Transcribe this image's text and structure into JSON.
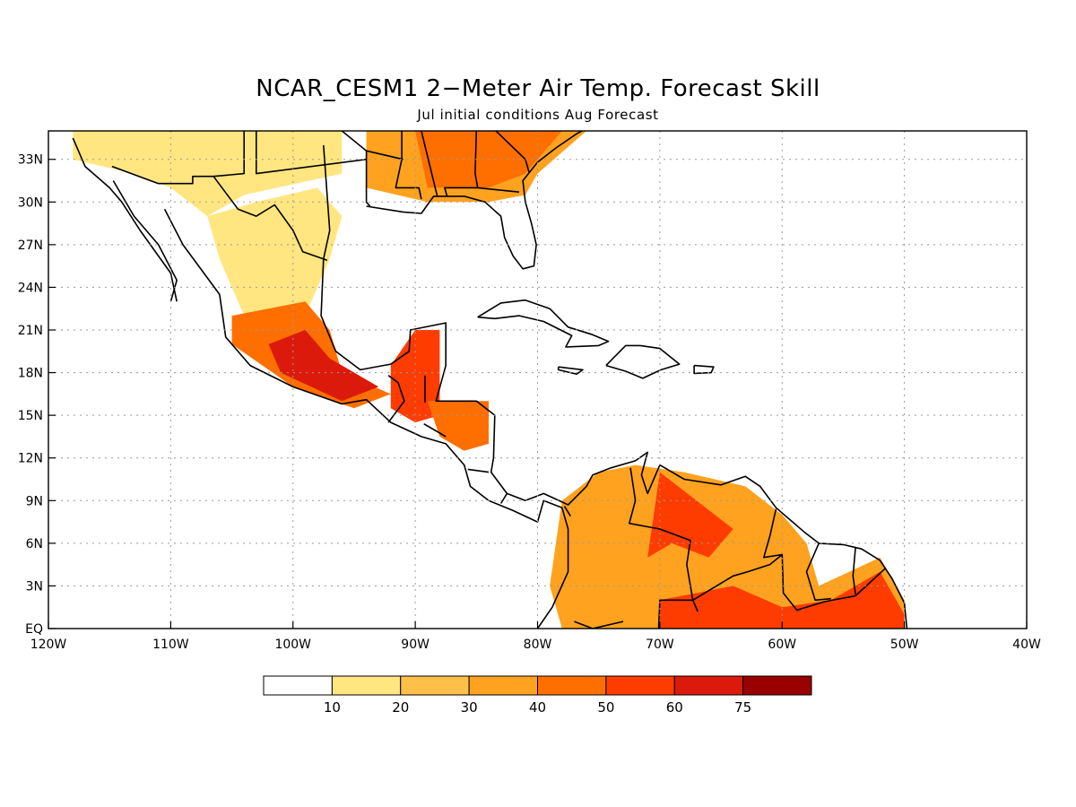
{
  "title": "NCAR_CESM1 2−Meter Air Temp. Forecast Skill",
  "subtitle": "Jul initial conditions  Aug Forecast",
  "map": {
    "lon_range": [
      -120,
      -40
    ],
    "lat_range": [
      0,
      35
    ],
    "lon_ticks": [
      {
        "value": -120,
        "label": "120W"
      },
      {
        "value": -110,
        "label": "110W"
      },
      {
        "value": -100,
        "label": "100W"
      },
      {
        "value": -90,
        "label": "90W"
      },
      {
        "value": -80,
        "label": "80W"
      },
      {
        "value": -70,
        "label": "70W"
      },
      {
        "value": -60,
        "label": "60W"
      },
      {
        "value": -50,
        "label": "50W"
      },
      {
        "value": -40,
        "label": "40W"
      }
    ],
    "lat_ticks": [
      {
        "value": 0,
        "label": "EQ"
      },
      {
        "value": 3,
        "label": "3N"
      },
      {
        "value": 6,
        "label": "6N"
      },
      {
        "value": 9,
        "label": "9N"
      },
      {
        "value": 12,
        "label": "12N"
      },
      {
        "value": 15,
        "label": "15N"
      },
      {
        "value": 18,
        "label": "18N"
      },
      {
        "value": 21,
        "label": "21N"
      },
      {
        "value": 24,
        "label": "24N"
      },
      {
        "value": 27,
        "label": "27N"
      },
      {
        "value": 30,
        "label": "30N"
      },
      {
        "value": 33,
        "label": "33N"
      }
    ],
    "grid": "dotted"
  },
  "colorbar": {
    "colors": [
      "#ffffff",
      "#ffe680",
      "#ffc04a",
      "#ffa21f",
      "#ff6f00",
      "#ff3c00",
      "#dc1a0b",
      "#9a0000"
    ],
    "labels": [
      "10",
      "20",
      "30",
      "40",
      "50",
      "60",
      "75"
    ]
  },
  "skill_regions": [
    {
      "name": "us-southwest",
      "level": 1,
      "poly": [
        [
          -118,
          35
        ],
        [
          -96,
          35
        ],
        [
          -96,
          32
        ],
        [
          -104,
          30.5
        ],
        [
          -107,
          29
        ],
        [
          -110,
          31
        ],
        [
          -113,
          32
        ],
        [
          -118,
          33
        ]
      ]
    },
    {
      "name": "us-southeast",
      "level": 3,
      "poly": [
        [
          -94,
          35
        ],
        [
          -76,
          35
        ],
        [
          -80,
          32
        ],
        [
          -81,
          30.5
        ],
        [
          -84,
          30
        ],
        [
          -89,
          30
        ],
        [
          -94,
          31
        ]
      ]
    },
    {
      "name": "us-southeast-core",
      "level": 4,
      "poly": [
        [
          -90,
          35
        ],
        [
          -78,
          35
        ],
        [
          -81,
          32
        ],
        [
          -84,
          31
        ],
        [
          -89,
          31
        ]
      ]
    },
    {
      "name": "mexico-north",
      "level": 1,
      "poly": [
        [
          -107,
          29
        ],
        [
          -103,
          30
        ],
        [
          -98,
          31
        ],
        [
          -96,
          29
        ],
        [
          -97,
          26
        ],
        [
          -98,
          24
        ],
        [
          -99,
          22
        ],
        [
          -104,
          22
        ],
        [
          -106,
          26
        ]
      ]
    },
    {
      "name": "mexico-central",
      "level": 4,
      "poly": [
        [
          -105,
          22
        ],
        [
          -99,
          23
        ],
        [
          -97,
          21
        ],
        [
          -96,
          18
        ],
        [
          -92,
          16.5
        ],
        [
          -95,
          15.5
        ],
        [
          -100,
          17
        ],
        [
          -105,
          20
        ]
      ]
    },
    {
      "name": "mexico-south-core",
      "level": 6,
      "poly": [
        [
          -102,
          20
        ],
        [
          -99,
          21
        ],
        [
          -97,
          19
        ],
        [
          -93,
          17
        ],
        [
          -96,
          16
        ],
        [
          -101,
          18
        ]
      ]
    },
    {
      "name": "yucatan-guatemala",
      "level": 5,
      "poly": [
        [
          -92,
          18.5
        ],
        [
          -90,
          21
        ],
        [
          -88,
          21
        ],
        [
          -88,
          17
        ],
        [
          -88,
          15
        ],
        [
          -90,
          14.5
        ],
        [
          -92,
          15.5
        ]
      ]
    },
    {
      "name": "honduras",
      "level": 4,
      "poly": [
        [
          -89,
          16
        ],
        [
          -84,
          16
        ],
        [
          -84,
          13
        ],
        [
          -86,
          12.5
        ],
        [
          -88,
          13.5
        ]
      ]
    },
    {
      "name": "colombia-venezuela",
      "level": 3,
      "poly": [
        [
          -78,
          9
        ],
        [
          -75,
          11
        ],
        [
          -72,
          11.5
        ],
        [
          -68,
          11
        ],
        [
          -63,
          10
        ],
        [
          -60,
          8
        ],
        [
          -58,
          6
        ],
        [
          -57,
          3
        ],
        [
          -52,
          5
        ],
        [
          -50,
          2
        ],
        [
          -50,
          0
        ],
        [
          -78,
          0
        ],
        [
          -79,
          3
        ]
      ]
    },
    {
      "name": "venezuela-core",
      "level": 5,
      "poly": [
        [
          -70,
          11
        ],
        [
          -67,
          9
        ],
        [
          -64,
          7
        ],
        [
          -66,
          5
        ],
        [
          -69,
          6
        ],
        [
          -71,
          5
        ]
      ]
    },
    {
      "name": "amazon-core",
      "level": 5,
      "poly": [
        [
          -70,
          2
        ],
        [
          -64,
          3
        ],
        [
          -60,
          1.5
        ],
        [
          -56,
          2
        ],
        [
          -52,
          4
        ],
        [
          -50,
          1
        ],
        [
          -50,
          0
        ],
        [
          -70,
          0
        ]
      ]
    }
  ]
}
